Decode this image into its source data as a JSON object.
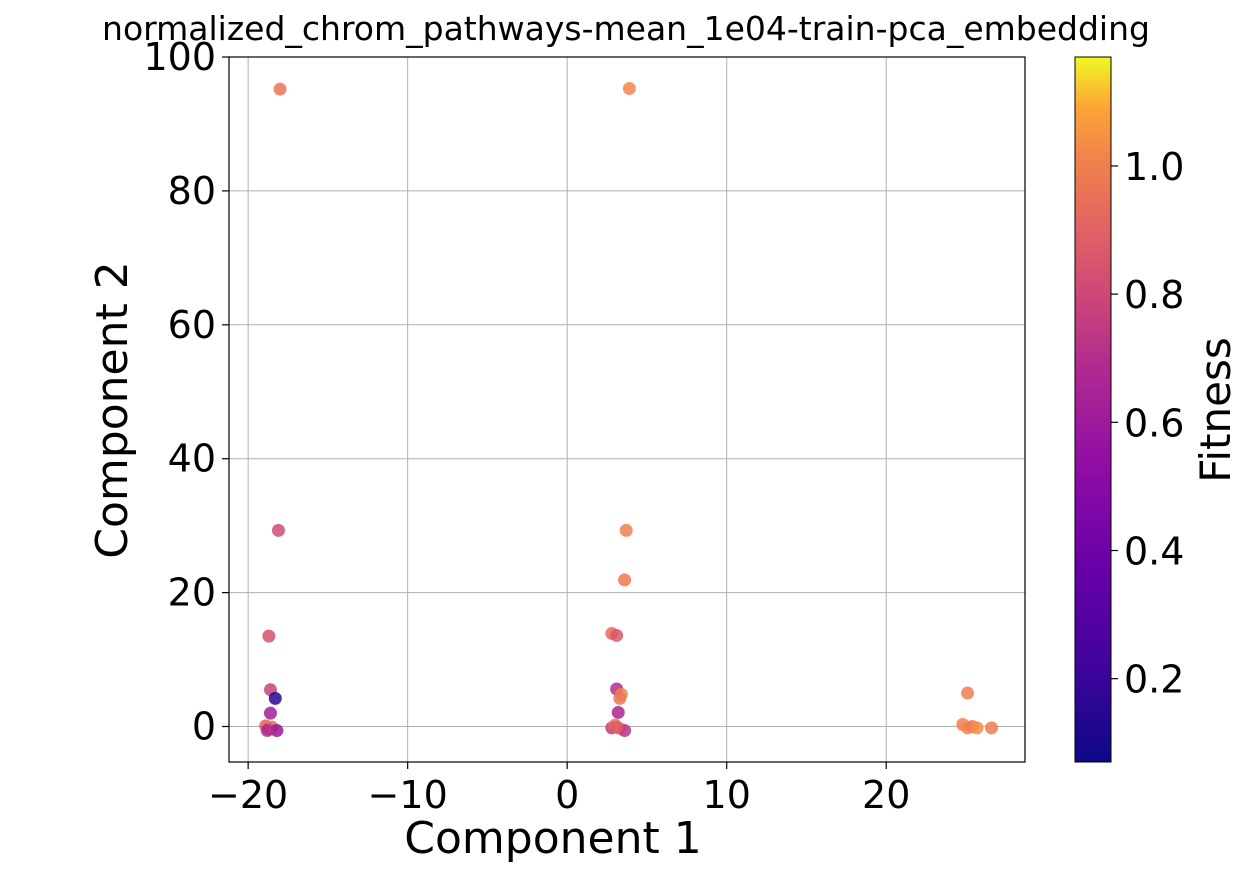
{
  "chart_data": {
    "type": "scatter",
    "title": "normalized_chrom_pathways-mean_1e04-train-pca_embedding",
    "xlabel": "Component 1",
    "ylabel": "Component 2",
    "xlim": [
      -21.2,
      28.7
    ],
    "ylim": [
      -5.3,
      100
    ],
    "xticks": [
      -20,
      -10,
      0,
      10,
      20
    ],
    "xtick_labels": [
      "−20",
      "−10",
      "0",
      "10",
      "20"
    ],
    "yticks": [
      0,
      20,
      40,
      60,
      80,
      100
    ],
    "ytick_labels": [
      "0",
      "20",
      "40",
      "60",
      "80",
      "100"
    ],
    "grid": true,
    "colormap": "plasma",
    "colorbar": {
      "label": "Fitness",
      "range": [
        0.07,
        1.17
      ],
      "ticks": [
        0.2,
        0.4,
        0.6,
        0.8,
        1.0
      ],
      "tick_labels": [
        "0.2",
        "0.4",
        "0.6",
        "0.8",
        "1.0"
      ]
    },
    "points": [
      {
        "x": -18.0,
        "y": 95.2,
        "fitness": 0.96
      },
      {
        "x": 3.9,
        "y": 95.3,
        "fitness": 1.02
      },
      {
        "x": -18.1,
        "y": 29.3,
        "fitness": 0.82
      },
      {
        "x": 3.7,
        "y": 29.3,
        "fitness": 1.0
      },
      {
        "x": 3.6,
        "y": 21.9,
        "fitness": 0.98
      },
      {
        "x": -18.7,
        "y": 13.5,
        "fitness": 0.84
      },
      {
        "x": 2.8,
        "y": 13.9,
        "fitness": 0.93
      },
      {
        "x": 3.1,
        "y": 13.6,
        "fitness": 0.86
      },
      {
        "x": -18.6,
        "y": 5.5,
        "fitness": 0.78
      },
      {
        "x": -18.3,
        "y": 4.2,
        "fitness": 0.15
      },
      {
        "x": 3.1,
        "y": 5.6,
        "fitness": 0.7
      },
      {
        "x": 3.4,
        "y": 4.8,
        "fitness": 1.0
      },
      {
        "x": 3.3,
        "y": 4.2,
        "fitness": 0.97
      },
      {
        "x": -18.6,
        "y": 2.0,
        "fitness": 0.62
      },
      {
        "x": 3.2,
        "y": 2.1,
        "fitness": 0.66
      },
      {
        "x": 25.1,
        "y": 5.0,
        "fitness": 1.0
      },
      {
        "x": -18.9,
        "y": 0.1,
        "fitness": 0.9
      },
      {
        "x": -18.7,
        "y": -0.4,
        "fitness": 0.6
      },
      {
        "x": -18.5,
        "y": -0.1,
        "fitness": 0.95
      },
      {
        "x": -18.2,
        "y": -0.6,
        "fitness": 0.58
      },
      {
        "x": -18.8,
        "y": -0.6,
        "fitness": 0.7
      },
      {
        "x": 2.8,
        "y": -0.2,
        "fitness": 0.75
      },
      {
        "x": 3.0,
        "y": 0.2,
        "fitness": 0.96
      },
      {
        "x": 3.3,
        "y": -0.3,
        "fitness": 1.03
      },
      {
        "x": 3.6,
        "y": -0.6,
        "fitness": 0.72
      },
      {
        "x": 3.1,
        "y": -0.1,
        "fitness": 0.88
      },
      {
        "x": 24.8,
        "y": 0.3,
        "fitness": 1.0
      },
      {
        "x": 25.1,
        "y": -0.2,
        "fitness": 1.02
      },
      {
        "x": 25.4,
        "y": 0.0,
        "fitness": 0.98
      },
      {
        "x": 25.7,
        "y": -0.2,
        "fitness": 1.04
      },
      {
        "x": 26.6,
        "y": -0.2,
        "fitness": 0.99
      }
    ]
  }
}
